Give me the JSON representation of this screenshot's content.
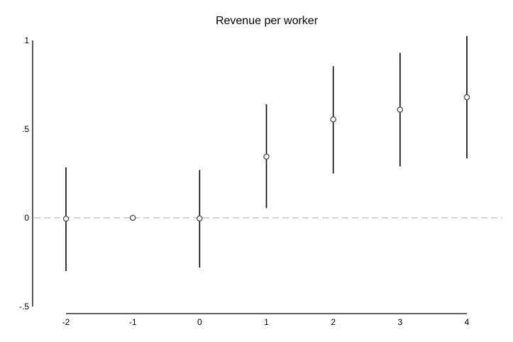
{
  "chart_data": {
    "type": "scatter",
    "title": "Revenue per worker",
    "xlabel": "",
    "ylabel": "",
    "x_ticks": [
      {
        "value": -2,
        "label": "-2"
      },
      {
        "value": -1,
        "label": "-1"
      },
      {
        "value": 0,
        "label": "0"
      },
      {
        "value": 1,
        "label": "1"
      },
      {
        "value": 2,
        "label": "2"
      },
      {
        "value": 3,
        "label": "3"
      },
      {
        "value": 4,
        "label": "4"
      }
    ],
    "y_ticks": [
      {
        "value": 1,
        "label": "1"
      },
      {
        "value": 0.5,
        "label": ".5"
      },
      {
        "value": 0,
        "label": "0"
      },
      {
        "value": -0.5,
        "label": "-.5"
      }
    ],
    "xlim": [
      -2,
      4
    ],
    "ylim": [
      -0.5,
      1
    ],
    "reference_line": {
      "y": 0,
      "style": "dashed",
      "color": "#c8c8c8"
    },
    "grid": false,
    "legend": "none",
    "marker": "hollow-circle",
    "colors": {
      "marker": "#555555",
      "error_bar": "#000000",
      "axis": "#000000"
    },
    "points": [
      {
        "x": -2,
        "y": -0.005,
        "lower": -0.3,
        "upper": 0.285
      },
      {
        "x": -1,
        "y": 0.0,
        "lower": null,
        "upper": null
      },
      {
        "x": 0,
        "y": -0.003,
        "lower": -0.28,
        "upper": 0.27
      },
      {
        "x": 1,
        "y": 0.345,
        "lower": 0.055,
        "upper": 0.64
      },
      {
        "x": 2,
        "y": 0.555,
        "lower": 0.25,
        "upper": 0.855
      },
      {
        "x": 3,
        "y": 0.61,
        "lower": 0.29,
        "upper": 0.93
      },
      {
        "x": 4,
        "y": 0.68,
        "lower": 0.335,
        "upper": 1.025
      }
    ]
  }
}
